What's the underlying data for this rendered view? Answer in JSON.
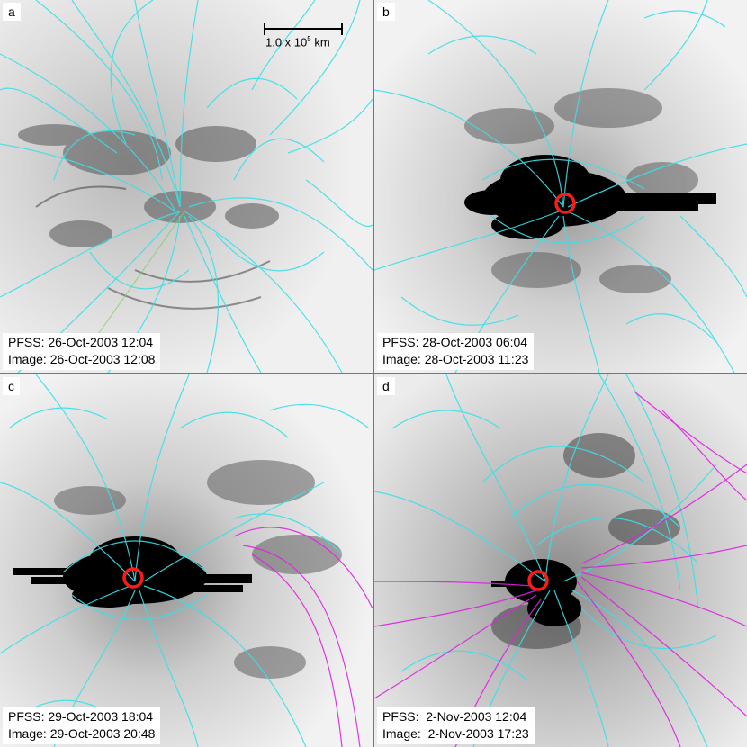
{
  "figure": {
    "scale_bar": {
      "value": "1.0 x 10",
      "exponent": "5",
      "unit": " km"
    },
    "colors": {
      "field_closed": "#39e0e8",
      "field_open": "#e020e0",
      "marker": "#ff1a1a",
      "background_light": "#f2f2f2",
      "spot": "#000000"
    },
    "panels": [
      {
        "letter": "a",
        "pfss": "PFSS: 26-Oct-2003 12:04",
        "image": "Image: 26-Oct-2003 12:08",
        "has_marker": false,
        "has_open_field": false
      },
      {
        "letter": "b",
        "pfss": "PFSS: 28-Oct-2003 06:04",
        "image": "Image: 28-Oct-2003 11:23",
        "has_marker": true,
        "has_open_field": false
      },
      {
        "letter": "c",
        "pfss": "PFSS: 29-Oct-2003 18:04",
        "image": "Image: 29-Oct-2003 20:48",
        "has_marker": true,
        "has_open_field": true
      },
      {
        "letter": "d",
        "pfss": "PFSS:  2-Nov-2003 12:04",
        "image": "Image:  2-Nov-2003 17:23",
        "has_marker": true,
        "has_open_field": true
      }
    ]
  }
}
